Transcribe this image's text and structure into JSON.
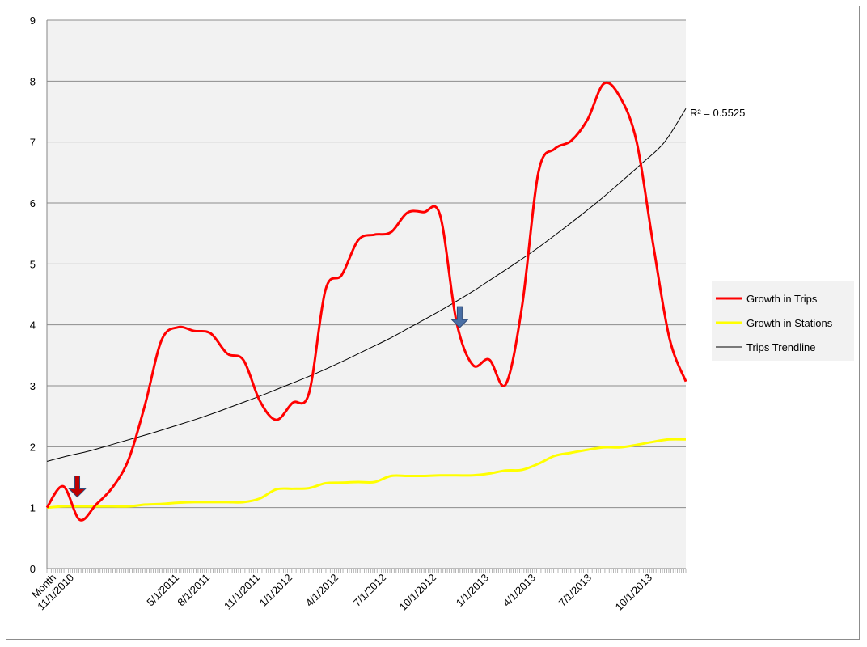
{
  "chart_data": {
    "type": "line",
    "title": "",
    "xlabel": "",
    "ylabel": "",
    "ylim": [
      0,
      9
    ],
    "y_ticks": [
      0,
      1,
      2,
      3,
      4,
      5,
      6,
      7,
      8,
      9
    ],
    "grid": true,
    "legend_position": "right",
    "x_tick_labels": [
      "Month",
      "11/1/2010",
      "5/1/2011",
      "8/1/2011",
      "11/1/2011",
      "1/1/2012",
      "4/1/2012",
      "7/1/2012",
      "10/1/2012",
      "1/1/2013",
      "4/1/2013",
      "7/1/2013",
      "10/1/2013"
    ],
    "series": [
      {
        "name": "Growth in Trips",
        "color": "#ff0000",
        "values": [
          1.0,
          1.35,
          0.8,
          1.05,
          1.33,
          1.8,
          2.7,
          3.75,
          3.96,
          3.9,
          3.86,
          3.53,
          3.42,
          2.75,
          2.44,
          2.72,
          2.88,
          4.57,
          4.82,
          5.39,
          5.48,
          5.52,
          5.84,
          5.85,
          5.8,
          4.05,
          3.34,
          3.43,
          3.02,
          4.3,
          6.5,
          6.89,
          7.02,
          7.37,
          7.96,
          7.73,
          7.0,
          5.33,
          3.78,
          3.07
        ]
      },
      {
        "name": "Growth in Stations",
        "color": "#ffff00",
        "values": [
          1.0,
          1.02,
          1.02,
          1.02,
          1.02,
          1.02,
          1.05,
          1.06,
          1.08,
          1.09,
          1.09,
          1.09,
          1.09,
          1.15,
          1.3,
          1.31,
          1.32,
          1.4,
          1.41,
          1.42,
          1.42,
          1.52,
          1.52,
          1.52,
          1.53,
          1.53,
          1.53,
          1.56,
          1.61,
          1.62,
          1.72,
          1.85,
          1.9,
          1.95,
          1.99,
          1.99,
          2.03,
          2.08,
          2.12,
          2.12
        ]
      },
      {
        "name": "Trips Trendline",
        "color": "#000000",
        "kind": "trendline",
        "values": [
          1.76,
          1.85,
          1.93,
          2.03,
          2.13,
          2.23,
          2.34,
          2.45,
          2.57,
          2.7,
          2.83,
          2.97,
          3.11,
          3.26,
          3.42,
          3.59,
          3.76,
          3.95,
          4.14,
          4.34,
          4.55,
          4.78,
          5.01,
          5.25,
          5.51,
          5.78,
          6.06,
          6.36,
          6.67,
          7.0,
          7.55
        ]
      }
    ],
    "annotations": {
      "r_squared": "R² = 0.5525",
      "arrows": [
        {
          "x_index": 2,
          "y": 1.52,
          "color": "#c00000",
          "direction": "down"
        },
        {
          "x_index": 25,
          "y": 4.3,
          "color": "#4a6fa5",
          "direction": "down"
        }
      ]
    },
    "colors": {
      "plot_background": "#f2f2f2",
      "gridline": "#8c8c8c",
      "legend_background": "#f2f2f2"
    }
  }
}
